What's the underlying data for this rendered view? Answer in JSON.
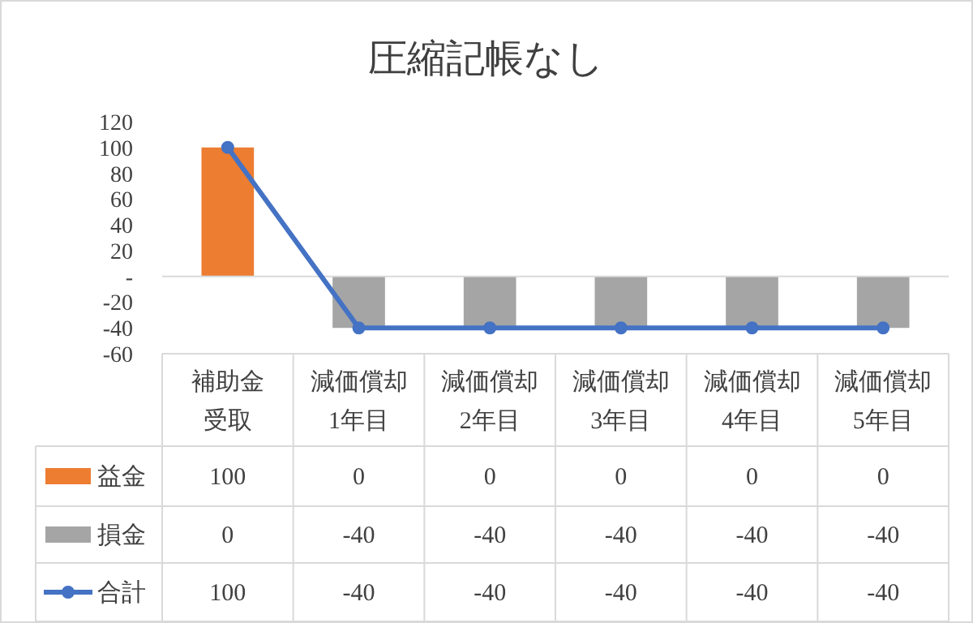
{
  "chart_data": {
    "type": "bar",
    "title": "圧縮記帳なし",
    "stacked": true,
    "data_labels": true,
    "legend": "bottom left",
    "categories": [
      "補助金受取",
      "減価償却1年目",
      "減価償却2年目",
      "減価償却3年目",
      "減価償却4年目",
      "減価償却5年目"
    ],
    "series": [
      {
        "name": "益金",
        "color": "#ed7d31",
        "values": [
          100,
          0,
          0,
          0,
          0,
          0
        ]
      },
      {
        "name": "損金",
        "color": "#a5a5a5",
        "values": [
          0,
          -40,
          -40,
          -40,
          -40,
          -40
        ]
      },
      {
        "name": "合計",
        "type": "line",
        "color": "#4472c4",
        "marker": "circle",
        "values": [
          100,
          -40,
          -40,
          -40,
          -40,
          -40
        ]
      }
    ],
    "ylim": [
      -60,
      120
    ],
    "yticks": [
      -60,
      -40,
      -20,
      {
        "value": 0,
        "label": "-"
      },
      20,
      40,
      60,
      80,
      100,
      120
    ]
  }
}
